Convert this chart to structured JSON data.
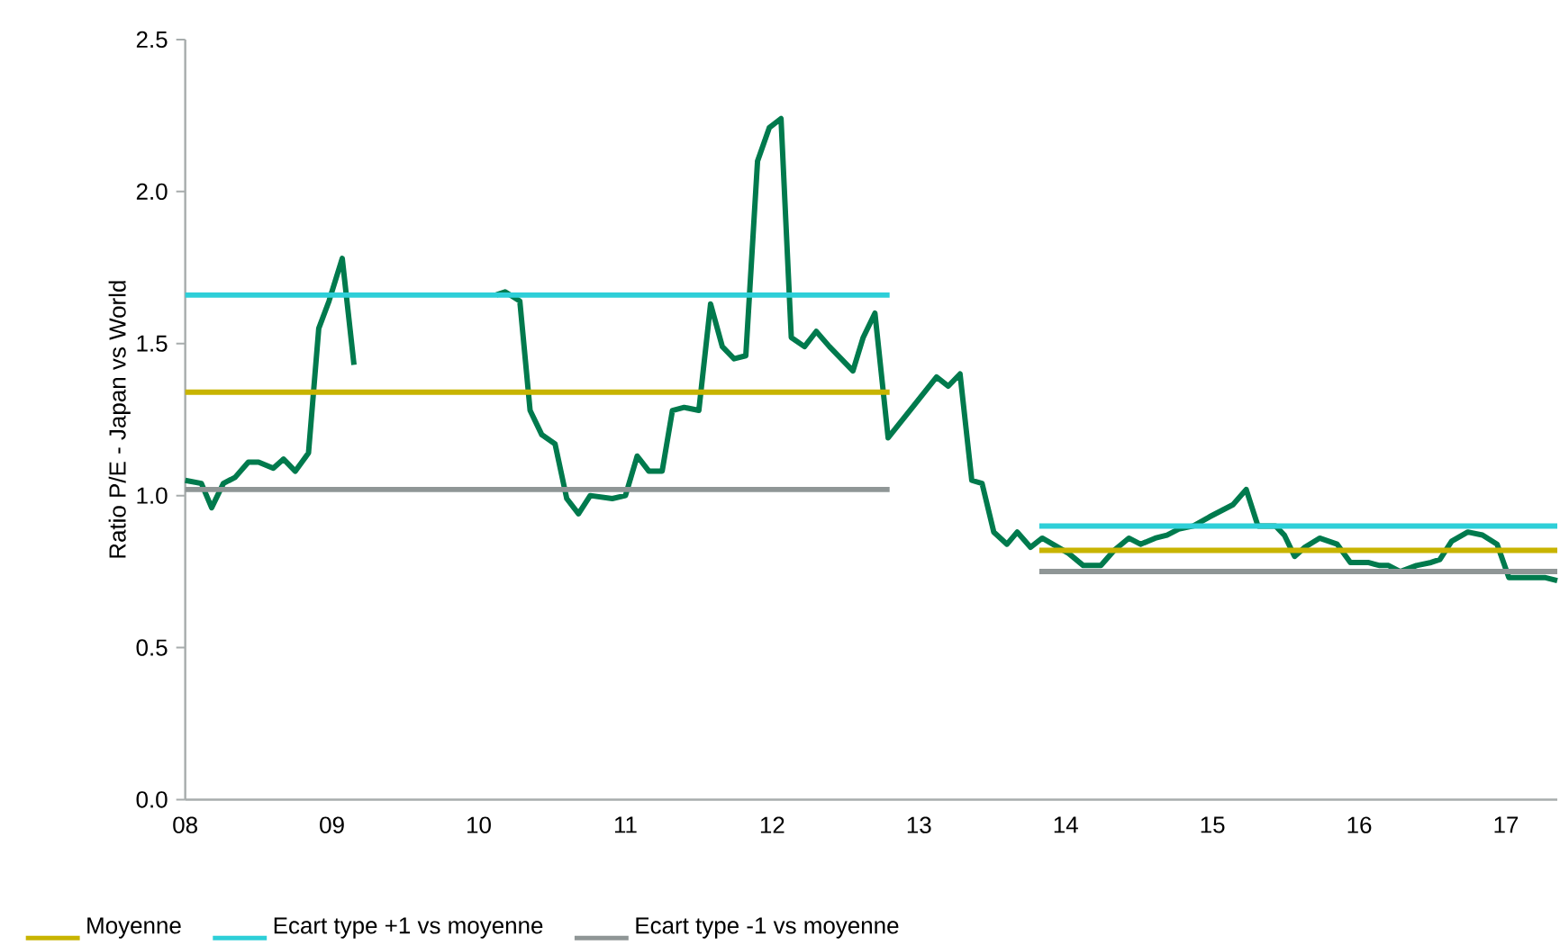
{
  "chart_data": {
    "type": "line",
    "ylabel": "Ratio P/E - Japan vs World",
    "xlim": [
      8,
      17.35
    ],
    "ylim": [
      0,
      2.5
    ],
    "xticks": [
      {
        "value": 8,
        "label": "08"
      },
      {
        "value": 9,
        "label": "09"
      },
      {
        "value": 10,
        "label": "10"
      },
      {
        "value": 11,
        "label": "11"
      },
      {
        "value": 12,
        "label": "12"
      },
      {
        "value": 13,
        "label": "13"
      },
      {
        "value": 14,
        "label": "14"
      },
      {
        "value": 15,
        "label": "15"
      },
      {
        "value": 16,
        "label": "16"
      },
      {
        "value": 17,
        "label": "17"
      }
    ],
    "yticks": [
      {
        "value": 0,
        "label": "0.0"
      },
      {
        "value": 0.5,
        "label": "0.5"
      },
      {
        "value": 1,
        "label": "1.0"
      },
      {
        "value": 1.5,
        "label": "1.5"
      },
      {
        "value": 2,
        "label": "2.0"
      },
      {
        "value": 2.5,
        "label": "2.5"
      }
    ],
    "grid": false,
    "legend": "bottom",
    "marker": "none",
    "line_style": "solid",
    "series": [
      {
        "color": "#007a4d",
        "x": [
          8.0,
          8.11,
          8.18,
          8.26,
          8.34,
          8.43,
          8.5,
          8.6,
          8.67,
          8.75,
          8.84,
          8.91,
          8.98,
          9.07,
          9.15,
          9.6,
          10.12,
          10.18,
          10.28,
          10.35,
          10.43,
          10.52,
          10.6,
          10.68,
          10.76,
          10.91,
          11.0,
          11.08,
          11.16,
          11.25,
          11.32,
          11.4,
          11.5,
          11.58,
          11.66,
          11.74,
          11.82,
          11.9,
          11.98,
          12.06,
          12.13,
          12.22,
          12.3,
          12.39,
          12.55,
          12.62,
          12.7,
          12.79,
          13.12,
          13.2,
          13.28,
          13.36,
          13.43,
          13.51,
          13.6,
          13.67,
          13.76,
          13.84,
          14.02,
          14.12,
          14.24,
          14.33,
          14.43,
          14.51,
          14.61,
          14.69,
          14.77,
          14.87,
          14.98,
          15.06,
          15.14,
          15.23,
          15.31,
          15.43,
          15.49,
          15.56,
          15.63,
          15.73,
          15.85,
          15.94,
          16.06,
          16.14,
          16.2,
          16.28,
          16.39,
          16.49,
          16.55,
          16.63,
          16.74,
          16.84,
          16.94,
          17.02,
          17.15,
          17.27,
          17.35
        ],
        "values": [
          1.05,
          1.04,
          0.96,
          1.04,
          1.06,
          1.11,
          1.11,
          1.09,
          1.12,
          1.08,
          1.14,
          1.55,
          1.64,
          1.78,
          1.43,
          null,
          1.66,
          1.67,
          1.64,
          1.28,
          1.2,
          1.17,
          0.99,
          0.94,
          1.0,
          0.99,
          1.0,
          1.13,
          1.08,
          1.08,
          1.28,
          1.29,
          1.28,
          1.63,
          1.49,
          1.45,
          1.46,
          2.1,
          2.21,
          2.24,
          1.52,
          1.49,
          1.54,
          1.49,
          1.41,
          1.52,
          1.6,
          1.19,
          1.39,
          1.36,
          1.4,
          1.05,
          1.04,
          0.88,
          0.84,
          0.88,
          0.83,
          0.86,
          0.81,
          0.77,
          0.77,
          0.82,
          0.86,
          0.84,
          0.86,
          0.87,
          0.89,
          0.9,
          0.93,
          0.95,
          0.97,
          1.02,
          0.9,
          0.9,
          0.87,
          0.8,
          0.83,
          0.86,
          0.84,
          0.78,
          0.78,
          0.77,
          0.77,
          0.75,
          0.77,
          0.78,
          0.79,
          0.85,
          0.88,
          0.87,
          0.84,
          0.73,
          0.73,
          0.73,
          0.72
        ]
      },
      {
        "name": "Moyenne",
        "color": "#c8b400",
        "x": [
          8.0,
          12.8,
          13.3,
          13.82,
          17.35
        ],
        "values": [
          1.34,
          1.34,
          null,
          0.82,
          0.82
        ]
      },
      {
        "name": "Ecart type +1 vs moyenne",
        "color": "#2ecfd8",
        "x": [
          8.0,
          12.8,
          13.3,
          13.82,
          17.35
        ],
        "values": [
          1.66,
          1.66,
          null,
          0.9,
          0.9
        ]
      },
      {
        "name": "Ecart type -1 vs moyenne",
        "color": "#8f9696",
        "x": [
          8.0,
          12.8,
          13.3,
          13.82,
          17.35
        ],
        "values": [
          1.02,
          1.02,
          null,
          0.75,
          0.75
        ]
      }
    ]
  }
}
